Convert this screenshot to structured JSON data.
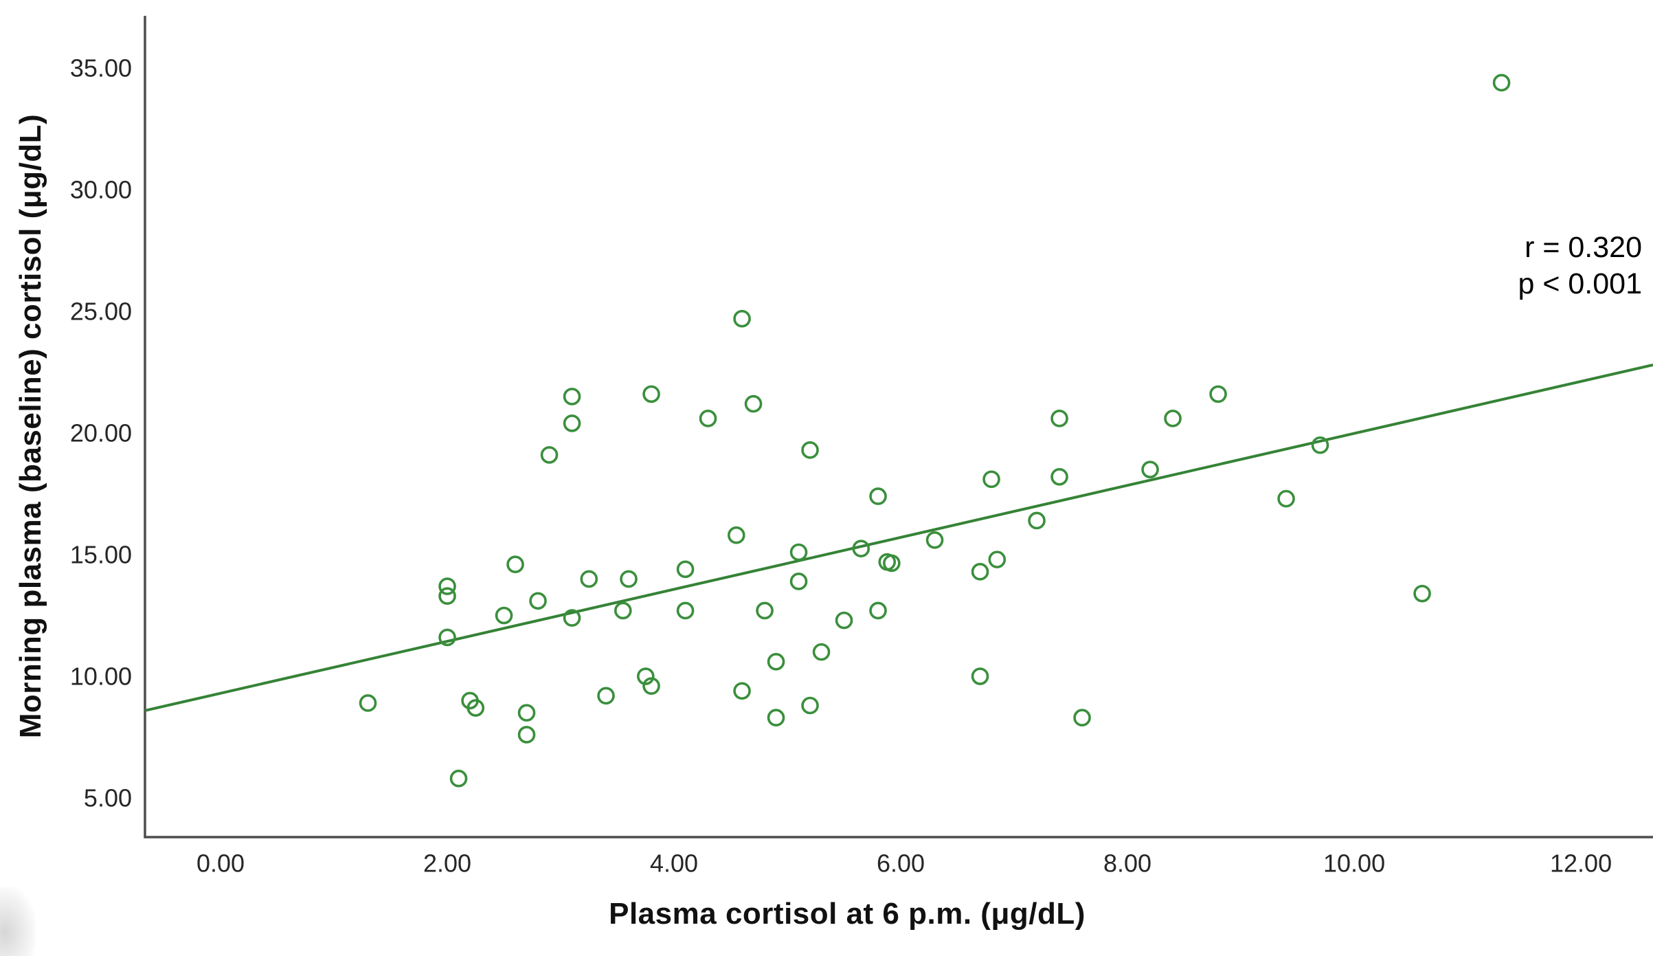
{
  "chart_data": {
    "type": "scatter",
    "title": "",
    "xlabel": "Plasma cortisol at 6 p.m. (μg/dL)",
    "ylabel": "Morning plasma (baseline) cortisol (μg/dL)",
    "annotation": {
      "r_label": "r = 0.320",
      "p_label": "p < 0.001"
    },
    "xlim": [
      -0.667,
      12.636
    ],
    "ylim": [
      3.39,
      37.15
    ],
    "x_ticks": {
      "values": [
        0,
        2,
        4,
        6,
        8,
        10,
        12
      ],
      "labels": [
        "0.00",
        "2.00",
        "4.00",
        "6.00",
        "8.00",
        "10.00",
        "12.00"
      ]
    },
    "y_ticks": {
      "values": [
        5,
        10,
        15,
        20,
        25,
        30,
        35
      ],
      "labels": [
        "5.00",
        "10.00",
        "15.00",
        "20.00",
        "25.00",
        "30.00",
        "35.00"
      ]
    },
    "grid": false,
    "legend": "none",
    "marker": {
      "shape": "open-circle",
      "radius_px": 11,
      "stroke_px": 3.6
    },
    "regression_line": {
      "x_start": -0.667,
      "y_start": 8.59,
      "x_end": 12.636,
      "y_end": 22.8
    },
    "points": [
      [
        1.3,
        8.9
      ],
      [
        2.0,
        13.7
      ],
      [
        2.0,
        13.3
      ],
      [
        2.0,
        11.6
      ],
      [
        2.1,
        5.8
      ],
      [
        2.2,
        9.0
      ],
      [
        2.25,
        8.7
      ],
      [
        2.5,
        12.5
      ],
      [
        2.6,
        14.6
      ],
      [
        2.7,
        8.5
      ],
      [
        2.7,
        7.6
      ],
      [
        2.8,
        13.1
      ],
      [
        2.9,
        19.1
      ],
      [
        3.1,
        21.5
      ],
      [
        3.1,
        20.4
      ],
      [
        3.1,
        12.4
      ],
      [
        3.25,
        14.0
      ],
      [
        3.4,
        9.2
      ],
      [
        3.55,
        12.7
      ],
      [
        3.6,
        14.0
      ],
      [
        3.75,
        10.0
      ],
      [
        3.8,
        9.6
      ],
      [
        3.8,
        21.6
      ],
      [
        4.1,
        14.4
      ],
      [
        4.1,
        12.7
      ],
      [
        4.3,
        20.6
      ],
      [
        4.55,
        15.8
      ],
      [
        4.6,
        24.7
      ],
      [
        4.6,
        9.4
      ],
      [
        4.7,
        21.2
      ],
      [
        4.8,
        12.7
      ],
      [
        4.9,
        10.6
      ],
      [
        4.9,
        8.3
      ],
      [
        5.1,
        15.1
      ],
      [
        5.1,
        13.9
      ],
      [
        5.2,
        19.3
      ],
      [
        5.2,
        8.8
      ],
      [
        5.3,
        11.0
      ],
      [
        5.5,
        12.3
      ],
      [
        5.65,
        15.25
      ],
      [
        5.8,
        17.4
      ],
      [
        5.8,
        12.7
      ],
      [
        5.88,
        14.7
      ],
      [
        5.92,
        14.65
      ],
      [
        6.3,
        15.6
      ],
      [
        6.7,
        14.3
      ],
      [
        6.7,
        10.0
      ],
      [
        6.85,
        14.8
      ],
      [
        6.8,
        18.1
      ],
      [
        7.2,
        16.4
      ],
      [
        7.4,
        20.6
      ],
      [
        7.4,
        18.2
      ],
      [
        7.6,
        8.3
      ],
      [
        8.2,
        18.5
      ],
      [
        8.4,
        20.6
      ],
      [
        8.8,
        21.6
      ],
      [
        9.4,
        17.3
      ],
      [
        9.7,
        19.5
      ],
      [
        10.6,
        13.4
      ],
      [
        11.3,
        34.4
      ]
    ]
  },
  "colors": {
    "background": "#ffffff",
    "axis": "#4d4d4d",
    "tick_text": "#262626",
    "title_text": "#111111",
    "annotation_text": "#000000",
    "point_green": "#3a8f3c",
    "line_green": "#358336"
  }
}
